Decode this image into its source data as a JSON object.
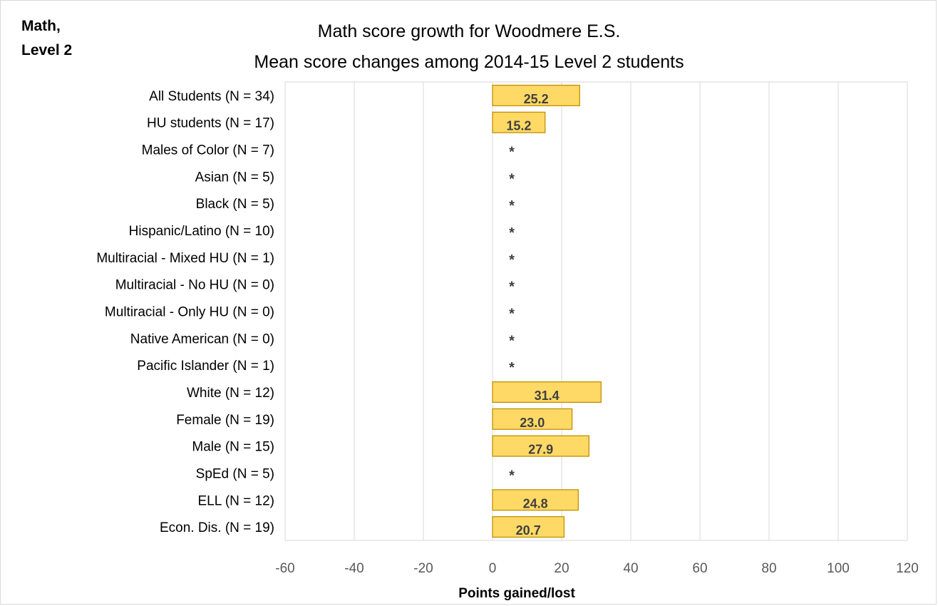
{
  "corner_label": [
    "Math,",
    "Level 2"
  ],
  "chart_data": {
    "type": "bar",
    "orientation": "horizontal",
    "title": "Math score growth for Woodmere E.S.",
    "subtitle": "Mean score changes among 2014-15 Level 2 students",
    "xlabel": "Points gained/lost",
    "xlim": [
      -60,
      120
    ],
    "xticks": [
      -60,
      -40,
      -20,
      0,
      20,
      40,
      60,
      80,
      100,
      120
    ],
    "grid": true,
    "suppressed_marker": "*",
    "categories": [
      "All Students (N = 34)",
      "HU students (N = 17)",
      "Males of Color (N = 7)",
      "Asian (N = 5)",
      "Black (N = 5)",
      "Hispanic/Latino (N = 10)",
      "Multiracial - Mixed HU (N = 1)",
      "Multiracial - No HU (N = 0)",
      "Multiracial - Only HU (N = 0)",
      "Native American (N = 0)",
      "Pacific Islander (N = 1)",
      "White (N = 12)",
      "Female (N = 19)",
      "Male (N = 15)",
      "SpEd (N = 5)",
      "ELL (N = 12)",
      "Econ. Dis. (N = 19)"
    ],
    "values": [
      25.2,
      15.2,
      null,
      null,
      null,
      null,
      null,
      null,
      null,
      null,
      null,
      31.4,
      23.0,
      27.9,
      null,
      24.8,
      20.7
    ],
    "bar_color": "#FFD966",
    "bar_border_color": "#BF9000"
  }
}
